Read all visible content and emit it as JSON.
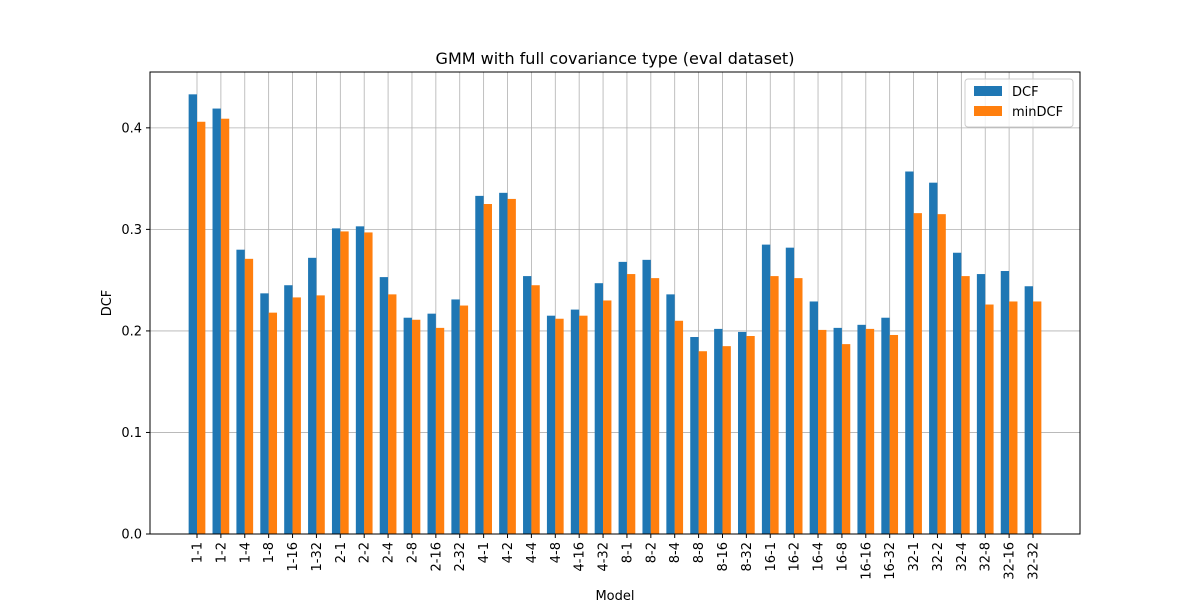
{
  "chart_data": {
    "type": "bar",
    "title": "GMM with full covariance type (eval dataset)",
    "xlabel": "Model",
    "ylabel": "DCF",
    "ylim": [
      0,
      0.455
    ],
    "yticks": [
      0.0,
      0.1,
      0.2,
      0.3,
      0.4
    ],
    "ytick_labels": [
      "0.0",
      "0.1",
      "0.2",
      "0.3",
      "0.4"
    ],
    "grid": true,
    "legend_position": "top-right",
    "categories": [
      "1-1",
      "1-2",
      "1-4",
      "1-8",
      "1-16",
      "1-32",
      "2-1",
      "2-2",
      "2-4",
      "2-8",
      "2-16",
      "2-32",
      "4-1",
      "4-2",
      "4-4",
      "4-8",
      "4-16",
      "4-32",
      "8-1",
      "8-2",
      "8-4",
      "8-8",
      "8-16",
      "8-32",
      "16-1",
      "16-2",
      "16-4",
      "16-8",
      "16-16",
      "16-32",
      "32-1",
      "32-2",
      "32-4",
      "32-8",
      "32-16",
      "32-32"
    ],
    "series": [
      {
        "name": "DCF",
        "color": "#1f77b4",
        "values": [
          0.433,
          0.419,
          0.28,
          0.237,
          0.245,
          0.272,
          0.301,
          0.303,
          0.253,
          0.213,
          0.217,
          0.231,
          0.333,
          0.336,
          0.254,
          0.215,
          0.221,
          0.247,
          0.268,
          0.27,
          0.236,
          0.194,
          0.202,
          0.199,
          0.285,
          0.282,
          0.229,
          0.203,
          0.206,
          0.213,
          0.357,
          0.346,
          0.277,
          0.256,
          0.259,
          0.244
        ]
      },
      {
        "name": "minDCF",
        "color": "#ff7f0e",
        "values": [
          0.406,
          0.409,
          0.271,
          0.218,
          0.233,
          0.235,
          0.298,
          0.297,
          0.236,
          0.211,
          0.203,
          0.225,
          0.325,
          0.33,
          0.245,
          0.212,
          0.215,
          0.23,
          0.256,
          0.252,
          0.21,
          0.18,
          0.185,
          0.195,
          0.254,
          0.252,
          0.201,
          0.187,
          0.202,
          0.196,
          0.316,
          0.315,
          0.254,
          0.226,
          0.229,
          0.229
        ]
      }
    ]
  }
}
